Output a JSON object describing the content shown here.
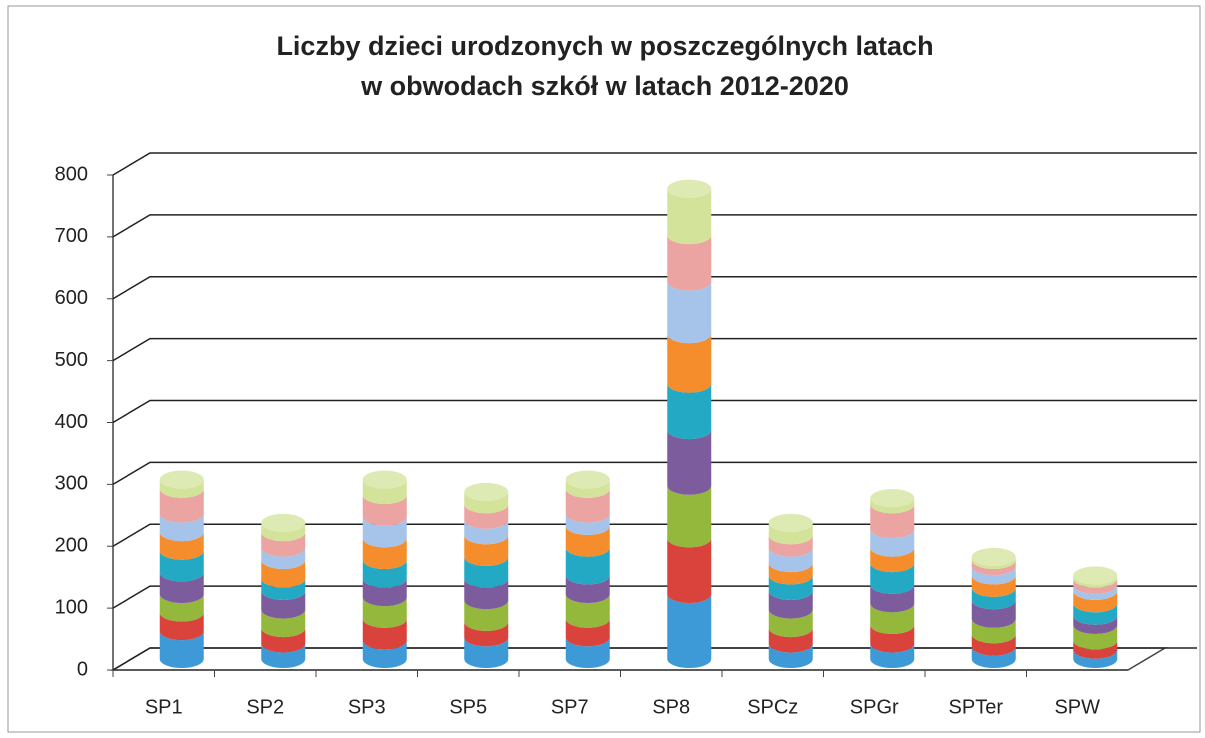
{
  "chart_data": {
    "type": "bar3d_stacked",
    "title": [
      "Liczby dzieci urodzonych w poszczególnych latach",
      "w obwodach szkół w latach 2012-2020"
    ],
    "categories": [
      "SP1",
      "SP2",
      "SP3",
      "SP5",
      "SP7",
      "SP8",
      "SPCz",
      "SPGr",
      "SPTer",
      "SPW"
    ],
    "series": [
      {
        "color": "#3d9ad6",
        "values": [
          45,
          25,
          30,
          35,
          35,
          105,
          25,
          25,
          20,
          15
        ]
      },
      {
        "color": "#d9433c",
        "values": [
          30,
          25,
          35,
          25,
          30,
          90,
          25,
          30,
          20,
          15
        ]
      },
      {
        "color": "#93b83c",
        "values": [
          30,
          30,
          35,
          35,
          40,
          85,
          30,
          35,
          25,
          25
        ]
      },
      {
        "color": "#7d5c9e",
        "values": [
          35,
          30,
          30,
          35,
          30,
          90,
          30,
          30,
          30,
          15
        ]
      },
      {
        "color": "#23a9c4",
        "values": [
          35,
          20,
          30,
          35,
          45,
          75,
          25,
          35,
          20,
          20
        ]
      },
      {
        "color": "#f58d2c",
        "values": [
          30,
          30,
          35,
          35,
          35,
          80,
          20,
          25,
          20,
          20
        ]
      },
      {
        "color": "#a6c3ea",
        "values": [
          30,
          20,
          35,
          25,
          20,
          85,
          25,
          30,
          15,
          10
        ]
      },
      {
        "color": "#eba4a2",
        "values": [
          40,
          25,
          35,
          25,
          40,
          75,
          20,
          40,
          10,
          10
        ]
      },
      {
        "color": "#d3e39a",
        "values": [
          15,
          15,
          25,
          20,
          15,
          75,
          20,
          10,
          5,
          5
        ]
      }
    ],
    "ylim": [
      0,
      800
    ],
    "yticks": [
      0,
      100,
      200,
      300,
      400,
      500,
      600,
      700,
      800
    ],
    "grid": true
  }
}
